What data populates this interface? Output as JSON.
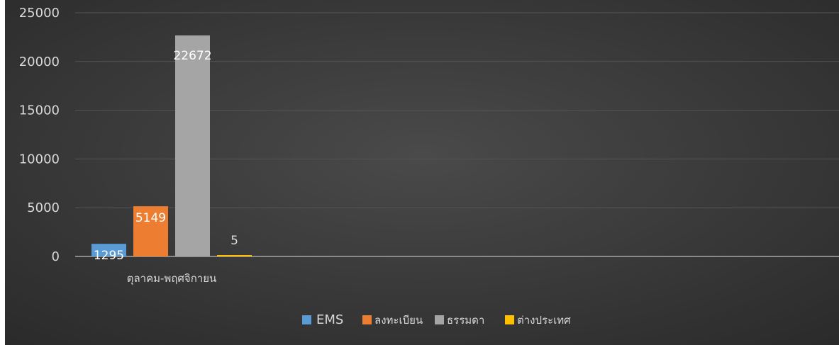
{
  "chart_data": {
    "type": "bar",
    "categories": [
      "ตุลาคม-พฤศจิกายน"
    ],
    "series": [
      {
        "name": "EMS",
        "values": [
          1295
        ],
        "color": "#5b9bd5",
        "label_color": "#ffffff"
      },
      {
        "name": "ลงทะเบียน",
        "values": [
          5149
        ],
        "color": "#ed7d31",
        "label_color": "#ffffff"
      },
      {
        "name": "ธรรมดา",
        "values": [
          22672
        ],
        "color": "#a5a5a5",
        "label_color": "#ffffff"
      },
      {
        "name": "ต่างประเทศ",
        "values": [
          5
        ],
        "color": "#ffc000",
        "label_color": "#d9d9d9"
      }
    ],
    "ylim": [
      0,
      25000
    ],
    "yticks": [
      0,
      5000,
      10000,
      15000,
      20000,
      25000
    ],
    "grid": true,
    "legend_position": "bottom",
    "background": "#3a3a3a",
    "title": "",
    "xlabel": "",
    "ylabel": ""
  }
}
